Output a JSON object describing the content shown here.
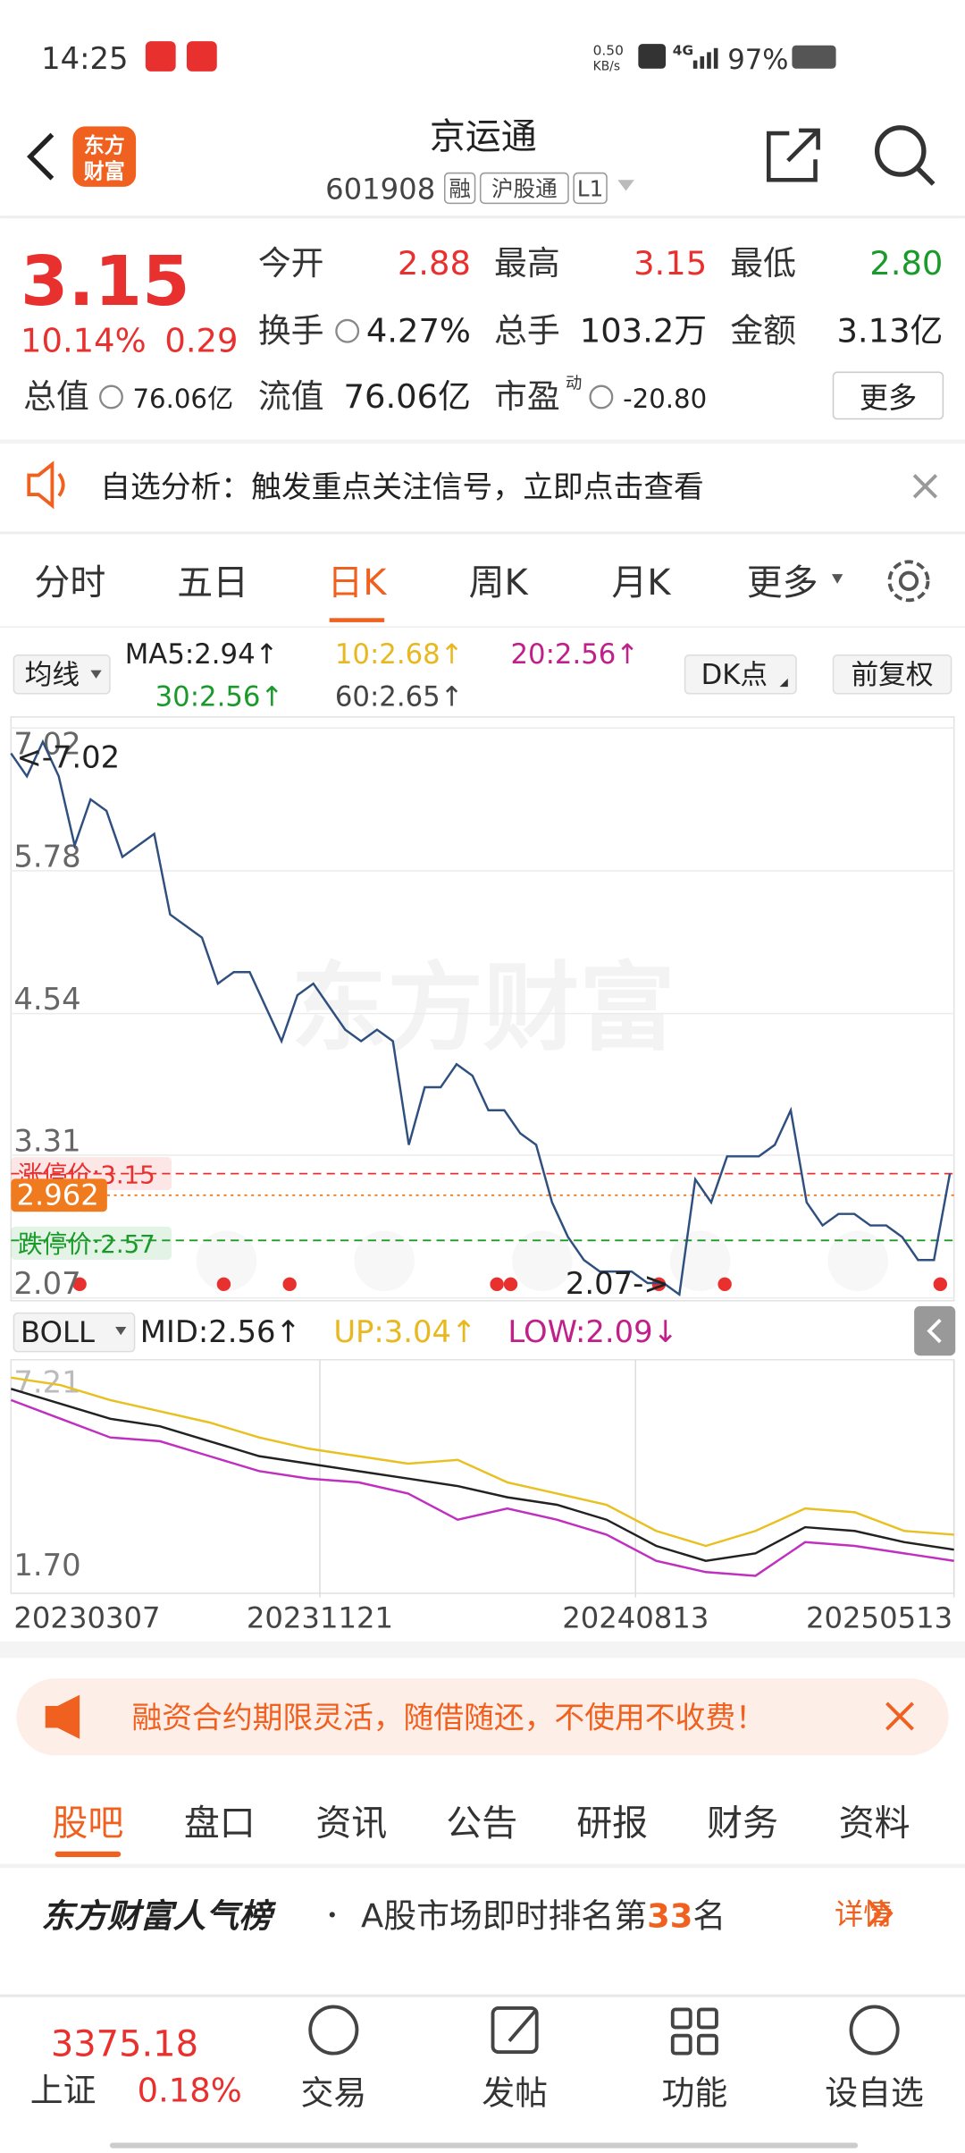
{
  "status": {
    "time": "14:25",
    "speed_value": "0.50",
    "speed_unit": "KB/s",
    "network": "4G",
    "battery": "97%"
  },
  "header": {
    "logo": [
      "东方",
      "财富"
    ],
    "title": "京运通",
    "code": "601908",
    "tags": [
      "融",
      "沪股通",
      "L1"
    ]
  },
  "quote": {
    "price": "3.15",
    "change_pct": "10.14%",
    "change": "0.29",
    "color": "#e8312f",
    "fields": [
      {
        "label": "今开",
        "value": "2.88",
        "color": "#e8312f"
      },
      {
        "label": "最高",
        "value": "3.15",
        "color": "#e8312f"
      },
      {
        "label": "最低",
        "value": "2.80",
        "color": "#1a9a2a"
      },
      {
        "label": "换手",
        "value": "4.27%",
        "color": "#222222"
      },
      {
        "label": "总手",
        "value": "103.2万",
        "color": "#222222"
      },
      {
        "label": "金额",
        "value": "3.13亿",
        "color": "#222222"
      },
      {
        "label": "总值",
        "value": "76.06亿",
        "color": "#222222"
      },
      {
        "label": "流值",
        "value": "76.06亿",
        "color": "#222222"
      },
      {
        "label": "市盈",
        "sup": "动",
        "value": "-20.80",
        "color": "#222222"
      }
    ],
    "more": "更多"
  },
  "notice": "自选分析：触发重点关注信号，立即点击查看",
  "tabs": {
    "items": [
      "分时",
      "五日",
      "日K",
      "周K",
      "月K",
      "更多"
    ],
    "active": 2
  },
  "ma": {
    "label": "均线",
    "items": [
      {
        "text": "MA5:2.94↑",
        "color": "#222222"
      },
      {
        "text": "10:2.68↑",
        "color": "#e8b820"
      },
      {
        "text": "20:2.56↑",
        "color": "#c0208a"
      },
      {
        "text": "30:2.56↑",
        "color": "#1a9a2a"
      },
      {
        "text": "60:2.65↑",
        "color": "#444444"
      }
    ],
    "buttons": [
      "DK点",
      "前复权"
    ]
  },
  "kline_chart": {
    "watermark": "东方财富",
    "ylim": [
      2.07,
      7.02
    ],
    "yticks": [
      7.02,
      5.78,
      4.54,
      3.31,
      2.07
    ],
    "high_label": "<-7.02",
    "low_label": "2.07->",
    "price": {
      "color": "#2f4f7f",
      "values": [
        6.8,
        6.6,
        6.9,
        6.6,
        6.0,
        6.4,
        6.3,
        5.9,
        6.0,
        6.1,
        5.4,
        5.3,
        5.2,
        4.8,
        4.9,
        4.9,
        4.6,
        4.3,
        4.7,
        4.8,
        4.6,
        4.4,
        4.3,
        4.4,
        4.3,
        3.4,
        3.9,
        3.9,
        4.1,
        4.0,
        3.7,
        3.7,
        3.5,
        3.4,
        2.9,
        2.6,
        2.4,
        2.3,
        2.3,
        2.3,
        2.2,
        2.2,
        2.1,
        3.1,
        2.9,
        3.3,
        3.3,
        3.3,
        3.4,
        3.7,
        2.9,
        2.7,
        2.8,
        2.8,
        2.7,
        2.7,
        2.6,
        2.4,
        2.4,
        3.15
      ]
    },
    "levels": [
      {
        "label": "涨停价:3.15",
        "value": 3.15,
        "color": "#e8312f"
      },
      {
        "label": "2.962",
        "value": 2.962,
        "color": "#f07a1e"
      },
      {
        "label": "跌停价:2.57",
        "value": 2.57,
        "color": "#1a9a2a"
      }
    ]
  },
  "boll": {
    "label": "BOLL",
    "items": [
      {
        "text": "MID:2.56↑",
        "color": "#222222"
      },
      {
        "text": "UP:3.04↑",
        "color": "#e8b820"
      },
      {
        "text": "LOW:2.09↓",
        "color": "#c0208a"
      }
    ],
    "ylim": [
      1.7,
      7.21
    ],
    "yticks": [
      7.21,
      {
        "value": 1.7,
        "label": "1.70"
      }
    ],
    "series": [
      {
        "color": "#e8c020",
        "values": [
          7.1,
          6.9,
          6.5,
          6.2,
          5.9,
          5.5,
          5.2,
          5.0,
          4.8,
          4.9,
          4.3,
          4.0,
          3.7,
          3.0,
          2.6,
          3.0,
          3.6,
          3.5,
          3.0,
          2.9
        ]
      },
      {
        "color": "#222222",
        "values": [
          6.8,
          6.4,
          6.0,
          5.8,
          5.4,
          5.0,
          4.8,
          4.6,
          4.4,
          4.2,
          3.9,
          3.7,
          3.3,
          2.6,
          2.2,
          2.4,
          3.1,
          3.0,
          2.7,
          2.5
        ]
      },
      {
        "color": "#c030c0",
        "values": [
          6.5,
          6.0,
          5.5,
          5.4,
          5.0,
          4.6,
          4.4,
          4.3,
          4.0,
          3.3,
          3.6,
          3.3,
          2.9,
          2.2,
          1.9,
          1.8,
          2.7,
          2.6,
          2.4,
          2.2
        ]
      }
    ],
    "dates": [
      "20230307",
      "20231121",
      "20240813",
      "20250513"
    ]
  },
  "ad": "融资合约期限灵活，随借随还，不使用不收费！",
  "subtabs": {
    "items": [
      "股吧",
      "盘口",
      "资讯",
      "公告",
      "研报",
      "财务",
      "资料"
    ],
    "active": 0
  },
  "rank": {
    "title": "东方财富人气榜",
    "text": "A股市场即时排名第",
    "number": "33",
    "suffix": "名",
    "detail": "详情"
  },
  "bottom": {
    "index_value": "3375.18",
    "index_name": "上证",
    "index_change": "0.18%",
    "buttons": [
      "交易",
      "发帖",
      "功能",
      "设自选"
    ]
  }
}
